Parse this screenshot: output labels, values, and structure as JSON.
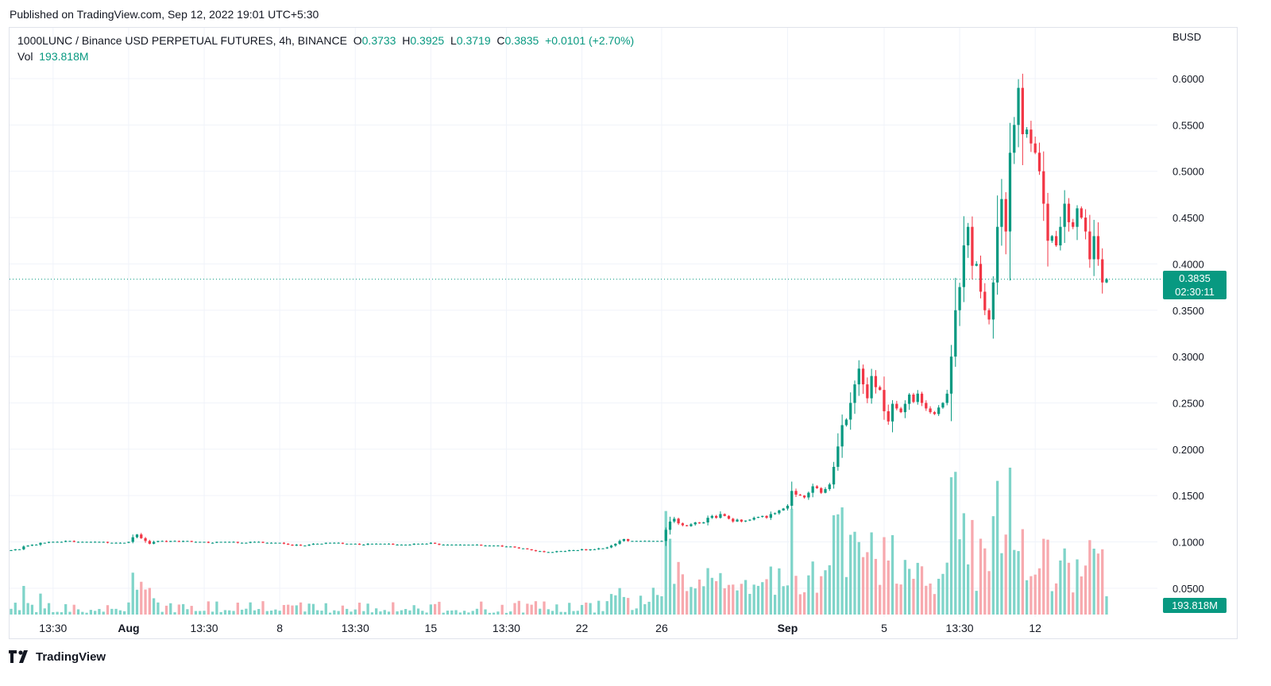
{
  "header": {
    "published": "Published on TradingView.com, Sep 12, 2022 19:01 UTC+5:30"
  },
  "legend": {
    "symbol": "1000LUNC / Binance USD PERPETUAL FUTURES, 4h, BINANCE",
    "o_label": "O",
    "o_value": "0.3733",
    "h_label": "H",
    "h_value": "0.3925",
    "l_label": "L",
    "l_value": "0.3719",
    "c_label": "C",
    "c_value": "0.3835",
    "change": "+0.0101 (+2.70%)",
    "vol_label": "Vol",
    "vol_value": "193.818M"
  },
  "axis": {
    "currency": "BUSD",
    "price_badge": "0.3835",
    "countdown": "02:30:11",
    "vol_badge": "193.818M"
  },
  "colors": {
    "up": "#089981",
    "down": "#f23645",
    "up_vol": "#7fd4c9",
    "down_vol": "#f7a9ae",
    "grid": "#f0f3fa"
  },
  "chart_data": {
    "type": "candlestick",
    "interval": "4h",
    "symbol": "1000LUNC/BUSD",
    "ylim": [
      0.05,
      0.6
    ],
    "yticks": [
      "0.6000",
      "0.5500",
      "0.5000",
      "0.4500",
      "0.4000",
      "0.3500",
      "0.3000",
      "0.2500",
      "0.2000",
      "0.1500",
      "0.1000",
      "0.0500"
    ],
    "ytick_values": [
      0.6,
      0.55,
      0.5,
      0.45,
      0.4,
      0.35,
      0.3,
      0.25,
      0.2,
      0.15,
      0.1,
      0.05
    ],
    "xticks": [
      {
        "label": "13:30",
        "bar": 10,
        "bold": false
      },
      {
        "label": "Aug",
        "bar": 28,
        "bold": true
      },
      {
        "label": "13:30",
        "bar": 46,
        "bold": false
      },
      {
        "label": "8",
        "bar": 64,
        "bold": false
      },
      {
        "label": "13:30",
        "bar": 82,
        "bold": false
      },
      {
        "label": "15",
        "bar": 100,
        "bold": false
      },
      {
        "label": "13:30",
        "bar": 118,
        "bold": false
      },
      {
        "label": "22",
        "bar": 136,
        "bold": false
      },
      {
        "label": "26",
        "bar": 155,
        "bold": false
      },
      {
        "label": "Sep",
        "bar": 185,
        "bold": true
      },
      {
        "label": "5",
        "bar": 208,
        "bold": false
      },
      {
        "label": "13:30",
        "bar": 226,
        "bold": false
      },
      {
        "label": "12",
        "bar": 244,
        "bold": false
      }
    ],
    "last_close": 0.3835,
    "last_volume": "193.818M",
    "closes": [
      0.091,
      0.092,
      0.092,
      0.095,
      0.096,
      0.097,
      0.097,
      0.099,
      0.099,
      0.1,
      0.1,
      0.1,
      0.1,
      0.101,
      0.101,
      0.1,
      0.1,
      0.1,
      0.1,
      0.1,
      0.1,
      0.1,
      0.1,
      0.099,
      0.099,
      0.099,
      0.099,
      0.099,
      0.1,
      0.105,
      0.108,
      0.104,
      0.101,
      0.098,
      0.1,
      0.101,
      0.101,
      0.1,
      0.101,
      0.101,
      0.1,
      0.101,
      0.101,
      0.1,
      0.1,
      0.1,
      0.1,
      0.099,
      0.099,
      0.1,
      0.1,
      0.1,
      0.1,
      0.1,
      0.099,
      0.099,
      0.099,
      0.1,
      0.1,
      0.1,
      0.099,
      0.099,
      0.099,
      0.099,
      0.099,
      0.098,
      0.097,
      0.096,
      0.097,
      0.096,
      0.096,
      0.097,
      0.098,
      0.098,
      0.098,
      0.099,
      0.099,
      0.099,
      0.099,
      0.098,
      0.098,
      0.098,
      0.098,
      0.097,
      0.097,
      0.098,
      0.098,
      0.098,
      0.098,
      0.098,
      0.098,
      0.097,
      0.097,
      0.097,
      0.097,
      0.097,
      0.098,
      0.098,
      0.098,
      0.098,
      0.099,
      0.098,
      0.097,
      0.097,
      0.097,
      0.097,
      0.097,
      0.097,
      0.097,
      0.097,
      0.097,
      0.097,
      0.096,
      0.096,
      0.096,
      0.096,
      0.096,
      0.095,
      0.095,
      0.095,
      0.094,
      0.093,
      0.093,
      0.092,
      0.091,
      0.09,
      0.09,
      0.089,
      0.089,
      0.089,
      0.09,
      0.09,
      0.09,
      0.091,
      0.091,
      0.091,
      0.092,
      0.091,
      0.092,
      0.092,
      0.093,
      0.093,
      0.094,
      0.096,
      0.098,
      0.101,
      0.103,
      0.101,
      0.101,
      0.101,
      0.101,
      0.101,
      0.101,
      0.101,
      0.101,
      0.101,
      0.113,
      0.122,
      0.125,
      0.12,
      0.118,
      0.117,
      0.119,
      0.121,
      0.12,
      0.121,
      0.126,
      0.128,
      0.126,
      0.13,
      0.128,
      0.125,
      0.122,
      0.124,
      0.122,
      0.123,
      0.124,
      0.126,
      0.127,
      0.128,
      0.126,
      0.13,
      0.131,
      0.134,
      0.136,
      0.139,
      0.155,
      0.151,
      0.15,
      0.148,
      0.153,
      0.16,
      0.158,
      0.153,
      0.157,
      0.162,
      0.181,
      0.203,
      0.226,
      0.232,
      0.25,
      0.27,
      0.287,
      0.27,
      0.255,
      0.279,
      0.267,
      0.264,
      0.241,
      0.23,
      0.249,
      0.244,
      0.24,
      0.249,
      0.259,
      0.251,
      0.26,
      0.25,
      0.244,
      0.24,
      0.238,
      0.245,
      0.25,
      0.26,
      0.3,
      0.35,
      0.375,
      0.42,
      0.44,
      0.398,
      0.4,
      0.37,
      0.35,
      0.34,
      0.38,
      0.44,
      0.47,
      0.435,
      0.52,
      0.55,
      0.59,
      0.54,
      0.545,
      0.53,
      0.52,
      0.5,
      0.465,
      0.425,
      0.43,
      0.42,
      0.44,
      0.465,
      0.445,
      0.44,
      0.46,
      0.45,
      0.435,
      0.405,
      0.43,
      0.405,
      0.38,
      0.3835
    ]
  }
}
